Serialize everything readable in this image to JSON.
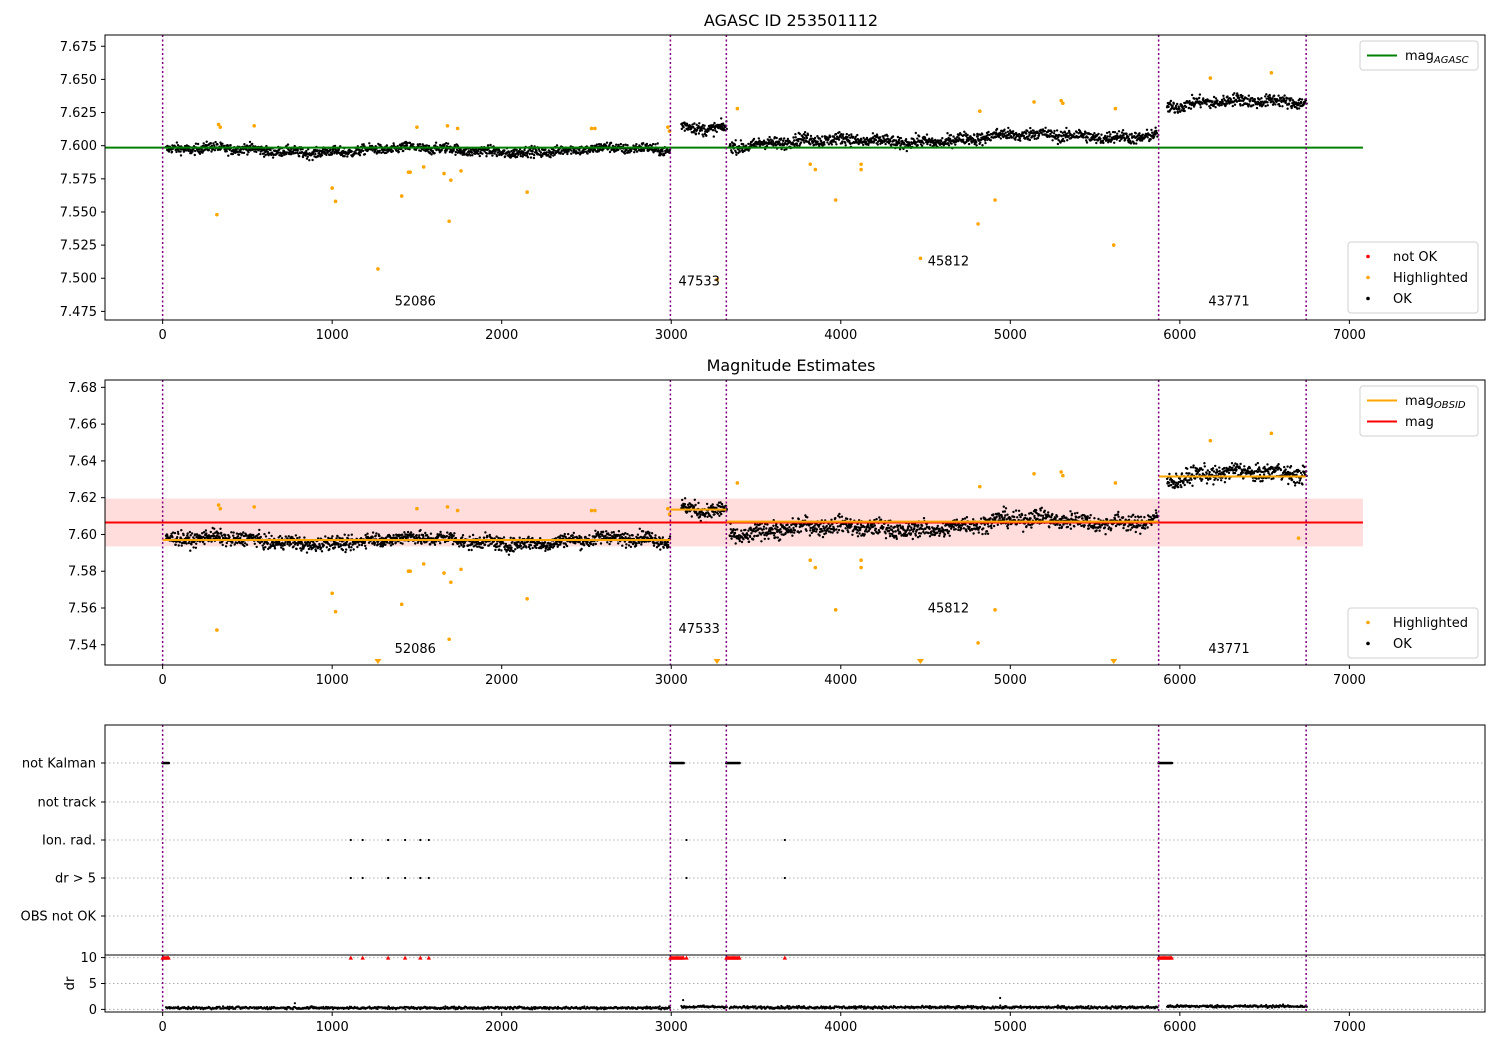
{
  "chart_data": [
    {
      "type": "scatter",
      "title": "AGASC ID 253501112",
      "xlim": [
        -340,
        7800
      ],
      "ylim": [
        7.4685,
        7.6835
      ],
      "xticks": [
        0,
        1000,
        2000,
        3000,
        4000,
        5000,
        6000,
        7000
      ],
      "xtick_labels": [
        "0",
        "1000",
        "2000",
        "3000",
        "4000",
        "5000",
        "6000",
        "7000"
      ],
      "yticks": [
        7.475,
        7.5,
        7.525,
        7.55,
        7.575,
        7.6,
        7.625,
        7.65,
        7.675
      ],
      "ytick_labels": [
        "7.475",
        "7.500",
        "7.525",
        "7.550",
        "7.575",
        "7.600",
        "7.625",
        "7.650",
        "7.675"
      ],
      "obs_boundaries": [
        0,
        2995,
        3325,
        5875,
        6745
      ],
      "obs_annotations": [
        {
          "text": "52086",
          "x": 1490,
          "y": 7.4795
        },
        {
          "text": "47533",
          "x": 3165,
          "y": 7.4945
        },
        {
          "text": "45812",
          "x": 4635,
          "y": 7.5095
        },
        {
          "text": "43771",
          "x": 6290,
          "y": 7.4795
        }
      ],
      "segments": [
        {
          "x_start": 20,
          "x_end": 2995,
          "y_mean": 7.5965,
          "amp": 0.005,
          "drift": 0
        },
        {
          "x_start": 3060,
          "x_end": 3330,
          "y_mean": 7.615,
          "amp": 0.006,
          "drift": 0
        },
        {
          "x_start": 3345,
          "x_end": 5870,
          "y_mean": 7.605,
          "amp": 0.006,
          "drift": 0.008
        },
        {
          "x_start": 5925,
          "x_end": 6750,
          "y_mean": 7.632,
          "amp": 0.006,
          "drift": 0.005
        }
      ],
      "lines": [
        {
          "name": "mag_AGASC",
          "x": [
            -340,
            7080
          ],
          "y": [
            7.5985,
            7.5985
          ],
          "color": "#008000"
        }
      ],
      "highlighted_points": {
        "x": [
          330,
          340,
          320,
          540,
          1000,
          1020,
          1270,
          1410,
          1450,
          1460,
          1500,
          1540,
          1660,
          1680,
          1690,
          1700,
          1740,
          1760,
          2150,
          2530,
          2550,
          2980,
          2990,
          3270,
          3390,
          3820,
          3850,
          3970,
          4120,
          4120,
          4470,
          4810,
          4820,
          4910,
          5140,
          5300,
          5310,
          5610,
          5620,
          6180,
          6540
        ],
        "y": [
          7.616,
          7.614,
          7.548,
          7.615,
          7.568,
          7.558,
          7.507,
          7.562,
          7.58,
          7.58,
          7.614,
          7.584,
          7.579,
          7.615,
          7.543,
          7.574,
          7.613,
          7.581,
          7.565,
          7.613,
          7.613,
          7.614,
          7.611,
          7.499,
          7.628,
          7.586,
          7.582,
          7.559,
          7.586,
          7.582,
          7.515,
          7.541,
          7.626,
          7.559,
          7.633,
          7.634,
          7.632,
          7.525,
          7.628,
          7.651,
          7.655
        ],
        "color": "#ffa500"
      },
      "ok_color": "#000000",
      "not_ok_color": "#ff0000",
      "legends": [
        {
          "position": "top-right",
          "items": [
            {
              "label": "mag",
              "sub": "AGASC",
              "kind": "line",
              "color": "#008000"
            }
          ]
        },
        {
          "position": "bottom-right",
          "items": [
            {
              "label": "not OK",
              "kind": "dot",
              "color": "#ff0000"
            },
            {
              "label": "Highlighted",
              "kind": "dot",
              "color": "#ffa500"
            },
            {
              "label": "OK",
              "kind": "dot",
              "color": "#000000"
            }
          ]
        }
      ]
    },
    {
      "type": "scatter",
      "title": "Magnitude Estimates",
      "xlim": [
        -340,
        7800
      ],
      "ylim": [
        7.529,
        7.684
      ],
      "xticks": [
        0,
        1000,
        2000,
        3000,
        4000,
        5000,
        6000,
        7000
      ],
      "xtick_labels": [
        "0",
        "1000",
        "2000",
        "3000",
        "4000",
        "5000",
        "6000",
        "7000"
      ],
      "yticks": [
        7.54,
        7.56,
        7.58,
        7.6,
        7.62,
        7.64,
        7.66,
        7.68
      ],
      "ytick_labels": [
        "7.54",
        "7.56",
        "7.58",
        "7.60",
        "7.62",
        "7.64",
        "7.66",
        "7.68"
      ],
      "obs_boundaries": [
        0,
        2995,
        3325,
        5875,
        6745
      ],
      "obs_annotations": [
        {
          "text": "52086",
          "x": 1490,
          "y": 7.5355
        },
        {
          "text": "47533",
          "x": 3165,
          "y": 7.5465
        },
        {
          "text": "45812",
          "x": 4635,
          "y": 7.5575
        },
        {
          "text": "43771",
          "x": 6290,
          "y": 7.5355
        }
      ],
      "segments": [
        {
          "x_start": 20,
          "x_end": 2995,
          "y_mean": 7.5965,
          "amp": 0.005,
          "drift": 0
        },
        {
          "x_start": 3060,
          "x_end": 3330,
          "y_mean": 7.615,
          "amp": 0.006,
          "drift": 0
        },
        {
          "x_start": 3345,
          "x_end": 5870,
          "y_mean": 7.605,
          "amp": 0.006,
          "drift": 0.008
        },
        {
          "x_start": 5925,
          "x_end": 6750,
          "y_mean": 7.632,
          "amp": 0.006,
          "drift": 0.005
        }
      ],
      "lines": [
        {
          "name": "mag",
          "x": [
            -340,
            7080
          ],
          "y": [
            7.6065,
            7.6065
          ],
          "color": "#ff0000"
        },
        {
          "name": "mag_OBSID",
          "x": [
            0,
            2995
          ],
          "y": [
            7.597,
            7.597
          ],
          "color": "#ffa500"
        },
        {
          "name": "mag_OBSID",
          "x": [
            2995,
            3325
          ],
          "y": [
            7.6135,
            7.6135
          ],
          "color": "#ffa500"
        },
        {
          "name": "mag_OBSID",
          "x": [
            3325,
            5875
          ],
          "y": [
            7.607,
            7.607
          ],
          "color": "#ffa500"
        },
        {
          "name": "mag_OBSID",
          "x": [
            5875,
            6745
          ],
          "y": [
            7.6315,
            7.6315
          ],
          "color": "#ffa500"
        }
      ],
      "band": {
        "x": [
          -340,
          7080
        ],
        "y": [
          7.5935,
          7.6195
        ],
        "color": "#ffdddd"
      },
      "highlighted_points": {
        "x": [
          330,
          340,
          320,
          540,
          1000,
          1020,
          1410,
          1450,
          1460,
          1500,
          1540,
          1660,
          1680,
          1690,
          1700,
          1740,
          1760,
          2150,
          2530,
          2550,
          2980,
          2990,
          3390,
          3820,
          3850,
          3970,
          4120,
          4120,
          4810,
          4820,
          4910,
          5140,
          5300,
          5310,
          5620,
          6180,
          6540,
          6700
        ],
        "y": [
          7.616,
          7.614,
          7.548,
          7.615,
          7.568,
          7.558,
          7.562,
          7.58,
          7.58,
          7.614,
          7.584,
          7.579,
          7.615,
          7.543,
          7.574,
          7.613,
          7.581,
          7.565,
          7.613,
          7.613,
          7.614,
          7.611,
          7.628,
          7.586,
          7.582,
          7.559,
          7.586,
          7.582,
          7.541,
          7.626,
          7.559,
          7.633,
          7.634,
          7.632,
          7.628,
          7.651,
          7.655,
          7.598
        ],
        "color": "#ffa500"
      },
      "out_of_range_markers": {
        "x": [
          1270,
          3270,
          4470,
          5610
        ],
        "color": "#ffa500"
      },
      "ok_color": "#000000",
      "legends": [
        {
          "position": "top-right",
          "items": [
            {
              "label": "mag",
              "sub": "OBSID",
              "kind": "line",
              "color": "#ffa500"
            },
            {
              "label": "mag",
              "kind": "line",
              "color": "#ff0000"
            }
          ]
        },
        {
          "position": "bottom-right",
          "items": [
            {
              "label": "Highlighted",
              "kind": "dot",
              "color": "#ffa500"
            },
            {
              "label": "OK",
              "kind": "dot",
              "color": "#000000"
            }
          ]
        }
      ]
    },
    {
      "type": "scatter",
      "xlim": [
        -340,
        7800
      ],
      "categories": [
        "not Kalman",
        "not track",
        "Ion. rad.",
        "dr > 5",
        "OBS not OK"
      ],
      "obs_boundaries": [
        0,
        2995,
        3325,
        5875,
        6745
      ],
      "flags": [
        {
          "label": "not Kalman",
          "x_ranges": [
            [
              0,
              40
            ],
            [
              2995,
              3075
            ],
            [
              3325,
              3405
            ],
            [
              5875,
              5955
            ]
          ],
          "x": []
        },
        {
          "label": "not track",
          "x_ranges": [],
          "x": []
        },
        {
          "label": "Ion. rad.",
          "x_ranges": [],
          "x": [
            1110,
            1180,
            1330,
            1430,
            1520,
            1570,
            3090,
            3670
          ]
        },
        {
          "label": "dr > 5",
          "x_ranges": [],
          "x": [
            1110,
            1180,
            1330,
            1430,
            1520,
            1570,
            3090,
            3670
          ]
        },
        {
          "label": "OBS not OK",
          "x_ranges": [],
          "x": []
        }
      ],
      "xtick_labels": [
        "0",
        "1000",
        "2000",
        "3000",
        "4000",
        "5000",
        "6000",
        "7000"
      ],
      "xticks": [
        0,
        1000,
        2000,
        3000,
        4000,
        5000,
        6000,
        7000
      ]
    },
    {
      "type": "scatter",
      "ylabel": "dr",
      "xlim": [
        -340,
        7800
      ],
      "ylim": [
        -0.5,
        10.5
      ],
      "yticks": [
        0,
        5,
        10
      ],
      "ytick_labels": [
        "0",
        "5",
        "10"
      ],
      "xticks": [
        0,
        1000,
        2000,
        3000,
        4000,
        5000,
        6000,
        7000
      ],
      "xtick_labels": [
        "0",
        "1000",
        "2000",
        "3000",
        "4000",
        "5000",
        "6000",
        "7000"
      ],
      "obs_boundaries": [
        0,
        2995,
        3325,
        5875,
        6745
      ],
      "clipped_points": {
        "x_ranges": [
          [
            0,
            40
          ],
          [
            2995,
            3075
          ],
          [
            3325,
            3405
          ],
          [
            5875,
            5955
          ]
        ],
        "x": [
          1110,
          1180,
          1330,
          1430,
          1520,
          1570,
          3090,
          3670
        ],
        "y": 10,
        "color": "#ff0000"
      },
      "dr_segments": [
        {
          "x_start": 20,
          "x_end": 2995,
          "mean": 0.3
        },
        {
          "x_start": 3060,
          "x_end": 3330,
          "mean": 0.5
        },
        {
          "x_start": 3345,
          "x_end": 5870,
          "mean": 0.4
        },
        {
          "x_start": 5925,
          "x_end": 6750,
          "mean": 0.6
        }
      ],
      "dr_outliers": {
        "x": [
          780,
          3070,
          4940
        ],
        "y": [
          1.2,
          1.8,
          2.2
        ]
      }
    }
  ]
}
